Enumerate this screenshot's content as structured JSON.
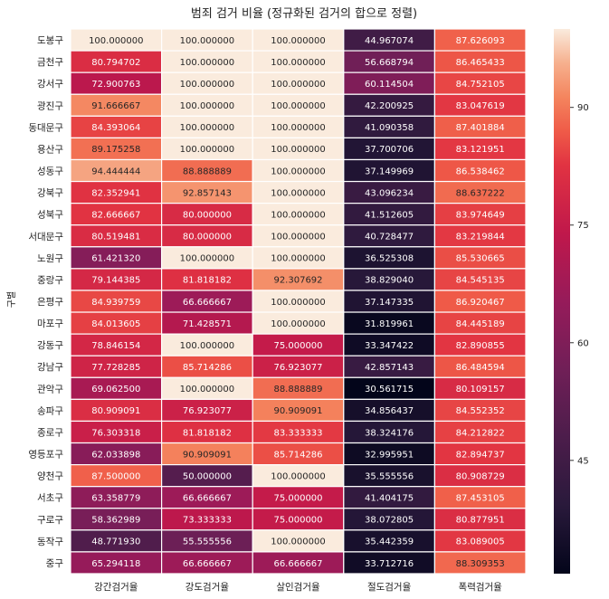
{
  "chart_data": {
    "type": "heatmap",
    "title": "범죄 검거 비율 (정규화된 검거의 합으로 정렬)",
    "ylabel": "구별",
    "xlabel": "",
    "columns": [
      "강간검거율",
      "강도검거율",
      "살인검거율",
      "절도검거율",
      "폭력검거율"
    ],
    "rows": [
      {
        "name": "도봉구",
        "labels": [
          "100.000000",
          "100.000000",
          "100.000000",
          "44.967074",
          "87.626093"
        ]
      },
      {
        "name": "금천구",
        "labels": [
          "80.794702",
          "100.000000",
          "100.000000",
          "56.668794",
          "86.465433"
        ]
      },
      {
        "name": "강서구",
        "labels": [
          "72.900763",
          "100.000000",
          "100.000000",
          "60.114504",
          "84.752105"
        ]
      },
      {
        "name": "광진구",
        "labels": [
          "91.666667",
          "100.000000",
          "100.000000",
          "42.200925",
          "83.047619"
        ]
      },
      {
        "name": "동대문구",
        "labels": [
          "84.393064",
          "100.000000",
          "100.000000",
          "41.090358",
          "87.401884"
        ]
      },
      {
        "name": "용산구",
        "labels": [
          "89.175258",
          "100.000000",
          "100.000000",
          "37.700706",
          "83.121951"
        ]
      },
      {
        "name": "성동구",
        "labels": [
          "94.444444",
          "88.888889",
          "100.000000",
          "37.149969",
          "86.538462"
        ]
      },
      {
        "name": "강북구",
        "labels": [
          "82.352941",
          "92.857143",
          "100.000000",
          "43.096234",
          "88.637222"
        ]
      },
      {
        "name": "성북구",
        "labels": [
          "82.666667",
          "80.000000",
          "100.000000",
          "41.512605",
          "83.974649"
        ]
      },
      {
        "name": "서대문구",
        "labels": [
          "80.519481",
          "80.000000",
          "100.000000",
          "40.728477",
          "83.219844"
        ]
      },
      {
        "name": "노원구",
        "labels": [
          "61.421320",
          "100.000000",
          "100.000000",
          "36.525308",
          "85.530665"
        ]
      },
      {
        "name": "중랑구",
        "labels": [
          "79.144385",
          "81.818182",
          "92.307692",
          "38.829040",
          "84.545135"
        ]
      },
      {
        "name": "은평구",
        "labels": [
          "84.939759",
          "66.666667",
          "100.000000",
          "37.147335",
          "86.920467"
        ]
      },
      {
        "name": "마포구",
        "labels": [
          "84.013605",
          "71.428571",
          "100.000000",
          "31.819961",
          "84.445189"
        ]
      },
      {
        "name": "강동구",
        "labels": [
          "78.846154",
          "100.000000",
          "75.000000",
          "33.347422",
          "82.890855"
        ]
      },
      {
        "name": "강남구",
        "labels": [
          "77.728285",
          "85.714286",
          "76.923077",
          "42.857143",
          "86.484594"
        ]
      },
      {
        "name": "관악구",
        "labels": [
          "69.062500",
          "100.000000",
          "88.888889",
          "30.561715",
          "80.109157"
        ]
      },
      {
        "name": "송파구",
        "labels": [
          "80.909091",
          "76.923077",
          "90.909091",
          "34.856437",
          "84.552352"
        ]
      },
      {
        "name": "종로구",
        "labels": [
          "76.303318",
          "81.818182",
          "83.333333",
          "38.324176",
          "84.212822"
        ]
      },
      {
        "name": "영등포구",
        "labels": [
          "62.033898",
          "90.909091",
          "85.714286",
          "32.995951",
          "82.894737"
        ]
      },
      {
        "name": "양천구",
        "labels": [
          "87.500000",
          "50.000000",
          "100.000000",
          "35.555556",
          "80.908729"
        ]
      },
      {
        "name": "서초구",
        "labels": [
          "63.358779",
          "66.666667",
          "75.000000",
          "41.404175",
          "87.453105"
        ]
      },
      {
        "name": "구로구",
        "labels": [
          "58.362989",
          "73.333333",
          "75.000000",
          "38.072805",
          "80.877951"
        ]
      },
      {
        "name": "동작구",
        "labels": [
          "48.771930",
          "55.555556",
          "100.000000",
          "35.442359",
          "83.089005"
        ]
      },
      {
        "name": "중구",
        "labels": [
          "65.294118",
          "66.666667",
          "66.666667",
          "33.712716",
          "88.309353"
        ]
      }
    ],
    "colorbar": {
      "vmin": 30.56,
      "vmax": 100,
      "ticks": [
        45,
        60,
        75,
        90
      ],
      "colormap": "rocket"
    }
  }
}
